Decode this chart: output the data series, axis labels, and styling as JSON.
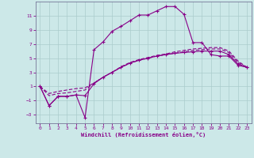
{
  "xlabel": "Windchill (Refroidissement éolien,°C)",
  "bg_color": "#cce8e8",
  "grid_color": "#aacccc",
  "line_color": "#880088",
  "xlim": [
    -0.5,
    23.5
  ],
  "ylim": [
    -4.2,
    13.0
  ],
  "xticks": [
    0,
    1,
    2,
    3,
    4,
    5,
    6,
    7,
    8,
    9,
    10,
    11,
    12,
    13,
    14,
    15,
    16,
    17,
    18,
    19,
    20,
    21,
    22,
    23
  ],
  "yticks": [
    -3,
    -1,
    1,
    3,
    5,
    7,
    9,
    11
  ],
  "line1_x": [
    0,
    1,
    2,
    3,
    4,
    5,
    6,
    7,
    8,
    9,
    10,
    11,
    12,
    13,
    14,
    15,
    16,
    17,
    18,
    19,
    20,
    21,
    22,
    23
  ],
  "line1_y": [
    1.0,
    -1.7,
    -0.4,
    -0.4,
    -0.2,
    -3.4,
    6.2,
    7.3,
    8.8,
    9.5,
    10.3,
    11.1,
    11.1,
    11.7,
    12.3,
    12.3,
    11.2,
    7.2,
    7.2,
    5.5,
    5.3,
    5.3,
    4.0,
    3.7
  ],
  "line2_x": [
    0,
    1,
    2,
    3,
    4,
    5,
    6,
    7,
    8,
    9,
    10,
    11,
    12,
    13,
    14,
    15,
    16,
    17,
    18,
    19,
    20,
    21,
    22,
    23
  ],
  "line2_y": [
    1.0,
    -1.7,
    -0.4,
    -0.4,
    -0.2,
    -0.3,
    1.4,
    2.3,
    3.0,
    3.7,
    4.3,
    4.7,
    5.0,
    5.3,
    5.5,
    5.7,
    5.8,
    5.9,
    6.0,
    6.0,
    6.0,
    5.5,
    4.2,
    3.7
  ],
  "line3_x": [
    0,
    1,
    2,
    3,
    4,
    5,
    6,
    7,
    8,
    9,
    10,
    11,
    12,
    13,
    14,
    15,
    16,
    17,
    18,
    19,
    20,
    21,
    22,
    23
  ],
  "line3_y": [
    1.0,
    -0.3,
    0.0,
    0.1,
    0.3,
    0.5,
    1.5,
    2.3,
    3.0,
    3.7,
    4.3,
    4.7,
    5.0,
    5.3,
    5.5,
    5.7,
    5.9,
    6.1,
    6.2,
    6.3,
    6.3,
    5.8,
    4.4,
    3.7
  ],
  "line4_x": [
    0,
    1,
    2,
    3,
    4,
    5,
    6,
    7,
    8,
    9,
    10,
    11,
    12,
    13,
    14,
    15,
    16,
    17,
    18,
    19,
    20,
    21,
    22,
    23
  ],
  "line4_y": [
    1.0,
    0.0,
    0.3,
    0.5,
    0.7,
    0.8,
    1.5,
    2.3,
    3.0,
    3.8,
    4.4,
    4.8,
    5.1,
    5.4,
    5.6,
    5.9,
    6.1,
    6.3,
    6.4,
    6.5,
    6.5,
    6.0,
    4.6,
    3.7
  ]
}
